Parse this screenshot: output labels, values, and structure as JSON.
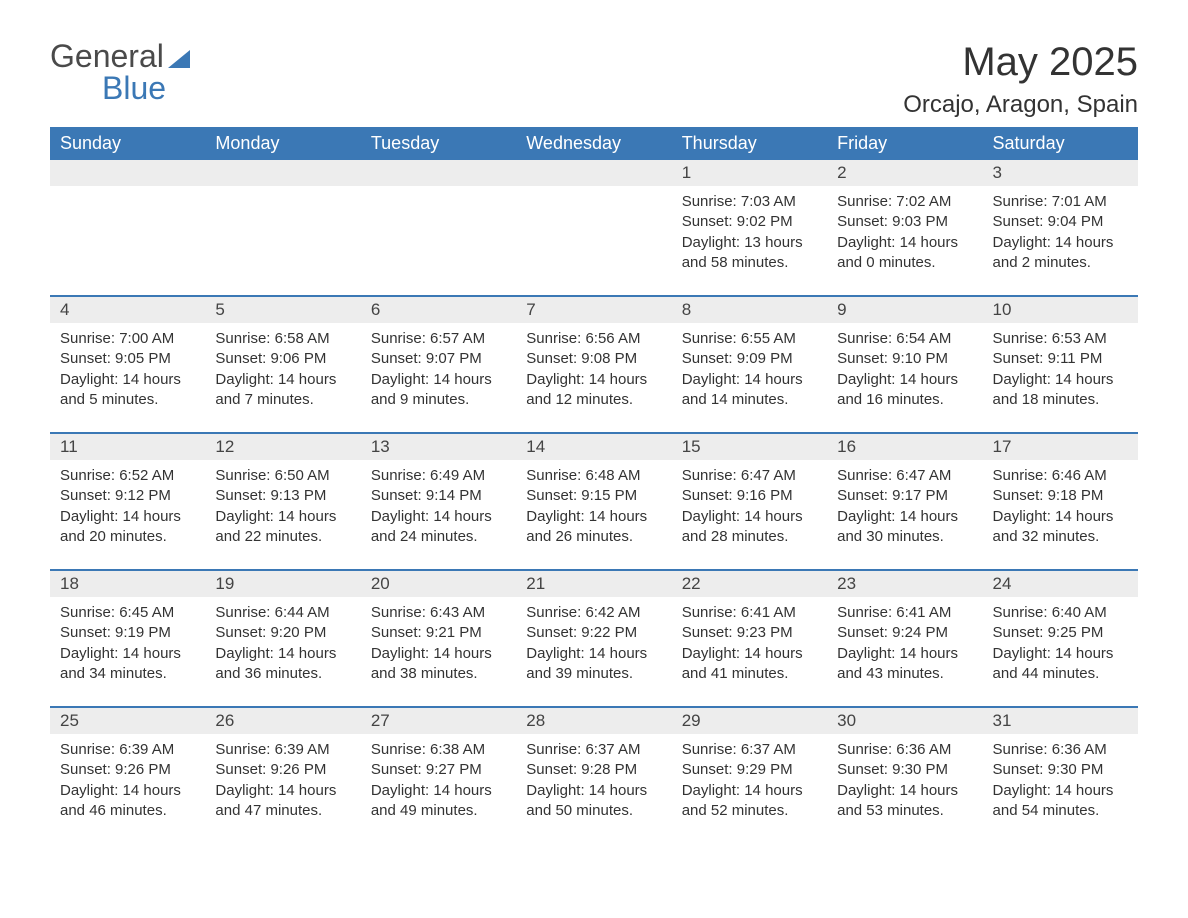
{
  "logo": {
    "word1": "General",
    "word2": "Blue"
  },
  "title": "May 2025",
  "location": "Orcajo, Aragon, Spain",
  "colors": {
    "header_bg": "#3b78b5",
    "header_text": "#ffffff",
    "daynum_bg": "#ededed",
    "row_border": "#3b78b5",
    "logo_accent": "#3b78b5",
    "body_text": "#333333",
    "page_bg": "#ffffff"
  },
  "day_headers": [
    "Sunday",
    "Monday",
    "Tuesday",
    "Wednesday",
    "Thursday",
    "Friday",
    "Saturday"
  ],
  "weeks": [
    [
      null,
      null,
      null,
      null,
      {
        "num": "1",
        "sunrise": "Sunrise: 7:03 AM",
        "sunset": "Sunset: 9:02 PM",
        "daylight": "Daylight: 13 hours and 58 minutes."
      },
      {
        "num": "2",
        "sunrise": "Sunrise: 7:02 AM",
        "sunset": "Sunset: 9:03 PM",
        "daylight": "Daylight: 14 hours and 0 minutes."
      },
      {
        "num": "3",
        "sunrise": "Sunrise: 7:01 AM",
        "sunset": "Sunset: 9:04 PM",
        "daylight": "Daylight: 14 hours and 2 minutes."
      }
    ],
    [
      {
        "num": "4",
        "sunrise": "Sunrise: 7:00 AM",
        "sunset": "Sunset: 9:05 PM",
        "daylight": "Daylight: 14 hours and 5 minutes."
      },
      {
        "num": "5",
        "sunrise": "Sunrise: 6:58 AM",
        "sunset": "Sunset: 9:06 PM",
        "daylight": "Daylight: 14 hours and 7 minutes."
      },
      {
        "num": "6",
        "sunrise": "Sunrise: 6:57 AM",
        "sunset": "Sunset: 9:07 PM",
        "daylight": "Daylight: 14 hours and 9 minutes."
      },
      {
        "num": "7",
        "sunrise": "Sunrise: 6:56 AM",
        "sunset": "Sunset: 9:08 PM",
        "daylight": "Daylight: 14 hours and 12 minutes."
      },
      {
        "num": "8",
        "sunrise": "Sunrise: 6:55 AM",
        "sunset": "Sunset: 9:09 PM",
        "daylight": "Daylight: 14 hours and 14 minutes."
      },
      {
        "num": "9",
        "sunrise": "Sunrise: 6:54 AM",
        "sunset": "Sunset: 9:10 PM",
        "daylight": "Daylight: 14 hours and 16 minutes."
      },
      {
        "num": "10",
        "sunrise": "Sunrise: 6:53 AM",
        "sunset": "Sunset: 9:11 PM",
        "daylight": "Daylight: 14 hours and 18 minutes."
      }
    ],
    [
      {
        "num": "11",
        "sunrise": "Sunrise: 6:52 AM",
        "sunset": "Sunset: 9:12 PM",
        "daylight": "Daylight: 14 hours and 20 minutes."
      },
      {
        "num": "12",
        "sunrise": "Sunrise: 6:50 AM",
        "sunset": "Sunset: 9:13 PM",
        "daylight": "Daylight: 14 hours and 22 minutes."
      },
      {
        "num": "13",
        "sunrise": "Sunrise: 6:49 AM",
        "sunset": "Sunset: 9:14 PM",
        "daylight": "Daylight: 14 hours and 24 minutes."
      },
      {
        "num": "14",
        "sunrise": "Sunrise: 6:48 AM",
        "sunset": "Sunset: 9:15 PM",
        "daylight": "Daylight: 14 hours and 26 minutes."
      },
      {
        "num": "15",
        "sunrise": "Sunrise: 6:47 AM",
        "sunset": "Sunset: 9:16 PM",
        "daylight": "Daylight: 14 hours and 28 minutes."
      },
      {
        "num": "16",
        "sunrise": "Sunrise: 6:47 AM",
        "sunset": "Sunset: 9:17 PM",
        "daylight": "Daylight: 14 hours and 30 minutes."
      },
      {
        "num": "17",
        "sunrise": "Sunrise: 6:46 AM",
        "sunset": "Sunset: 9:18 PM",
        "daylight": "Daylight: 14 hours and 32 minutes."
      }
    ],
    [
      {
        "num": "18",
        "sunrise": "Sunrise: 6:45 AM",
        "sunset": "Sunset: 9:19 PM",
        "daylight": "Daylight: 14 hours and 34 minutes."
      },
      {
        "num": "19",
        "sunrise": "Sunrise: 6:44 AM",
        "sunset": "Sunset: 9:20 PM",
        "daylight": "Daylight: 14 hours and 36 minutes."
      },
      {
        "num": "20",
        "sunrise": "Sunrise: 6:43 AM",
        "sunset": "Sunset: 9:21 PM",
        "daylight": "Daylight: 14 hours and 38 minutes."
      },
      {
        "num": "21",
        "sunrise": "Sunrise: 6:42 AM",
        "sunset": "Sunset: 9:22 PM",
        "daylight": "Daylight: 14 hours and 39 minutes."
      },
      {
        "num": "22",
        "sunrise": "Sunrise: 6:41 AM",
        "sunset": "Sunset: 9:23 PM",
        "daylight": "Daylight: 14 hours and 41 minutes."
      },
      {
        "num": "23",
        "sunrise": "Sunrise: 6:41 AM",
        "sunset": "Sunset: 9:24 PM",
        "daylight": "Daylight: 14 hours and 43 minutes."
      },
      {
        "num": "24",
        "sunrise": "Sunrise: 6:40 AM",
        "sunset": "Sunset: 9:25 PM",
        "daylight": "Daylight: 14 hours and 44 minutes."
      }
    ],
    [
      {
        "num": "25",
        "sunrise": "Sunrise: 6:39 AM",
        "sunset": "Sunset: 9:26 PM",
        "daylight": "Daylight: 14 hours and 46 minutes."
      },
      {
        "num": "26",
        "sunrise": "Sunrise: 6:39 AM",
        "sunset": "Sunset: 9:26 PM",
        "daylight": "Daylight: 14 hours and 47 minutes."
      },
      {
        "num": "27",
        "sunrise": "Sunrise: 6:38 AM",
        "sunset": "Sunset: 9:27 PM",
        "daylight": "Daylight: 14 hours and 49 minutes."
      },
      {
        "num": "28",
        "sunrise": "Sunrise: 6:37 AM",
        "sunset": "Sunset: 9:28 PM",
        "daylight": "Daylight: 14 hours and 50 minutes."
      },
      {
        "num": "29",
        "sunrise": "Sunrise: 6:37 AM",
        "sunset": "Sunset: 9:29 PM",
        "daylight": "Daylight: 14 hours and 52 minutes."
      },
      {
        "num": "30",
        "sunrise": "Sunrise: 6:36 AM",
        "sunset": "Sunset: 9:30 PM",
        "daylight": "Daylight: 14 hours and 53 minutes."
      },
      {
        "num": "31",
        "sunrise": "Sunrise: 6:36 AM",
        "sunset": "Sunset: 9:30 PM",
        "daylight": "Daylight: 14 hours and 54 minutes."
      }
    ]
  ]
}
